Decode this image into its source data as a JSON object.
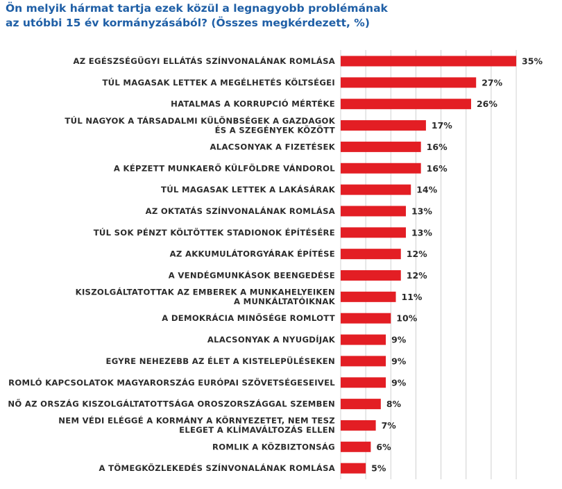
{
  "chart_data": {
    "type": "bar",
    "orientation": "horizontal",
    "title": "Ön melyik hármat tartja ezek közül a legnagyobb problémának\naz utóbbi 15 év kormányzásából? (Összes megkérdezett, %)",
    "categories": [
      "AZ EGÉSZSÉGÜGYI ELLÁTÁS SZÍNVONALÁNAK ROMLÁSA",
      "TÚL MAGASAK LETTEK A MEGÉLHETÉS KÖLTSÉGEI",
      "HATALMAS A KORRUPCIÓ MÉRTÉKE",
      "TÚL NAGYOK A TÁRSADALMI KÜLÖNBSÉGEK A GAZDAGOK\nÉS A SZEGÉNYEK KÖZÖTT",
      "ALACSONYAK A FIZETÉSEK",
      "A KÉPZETT MUNKAERŐ KÜLFÖLDRE VÁNDOROL",
      "TÚL MAGASAK LETTEK A LAKÁSÁRAK",
      "AZ OKTATÁS SZÍNVONALÁNAK ROMLÁSA",
      "TÚL SOK PÉNZT KÖLTÖTTEK STADIONOK ÉPÍTÉSÉRE",
      "AZ AKKUMULÁTORGYÁRAK ÉPÍTÉSE",
      "A VENDÉGMUNKÁSOK BEENGEDÉSE",
      "KISZOLGÁLTATOTTAK AZ EMBEREK A MUNKAHELYEIKEN\nA MUNKÁLTATÓIKNAK",
      "A DEMOKRÁCIA MINŐSÉGE ROMLOTT",
      "ALACSONYAK A NYUGDÍJAK",
      "EGYRE NEHEZEBB AZ ÉLET A KISTELEPÜLÉSEKEN",
      "ROMLÓ KAPCSOLATOK MAGYARORSZÁG EURÓPAI SZÖVETSÉGESEIVEL",
      "NŐ AZ ORSZÁG KISZOLGÁLTATOTTSÁGA OROSZORSZÁGGAL SZEMBEN",
      "NEM VÉDI ELÉGGÉ A KORMÁNY A KÖRNYEZETET, NEM TESZ\nELEGET A KLÍMAVÁLTOZÁS ELLEN",
      "ROMLIK A KÖZBIZTONSÁG",
      "A TÖMEGKÖZLEKEDÉS SZÍNVONALÁNAK ROMLÁSA"
    ],
    "values": [
      35,
      27,
      26,
      17,
      16,
      16,
      14,
      13,
      13,
      12,
      12,
      11,
      10,
      9,
      9,
      9,
      8,
      7,
      6,
      5
    ],
    "value_labels": [
      "35%",
      "27%",
      "26%",
      "17%",
      "16%",
      "16%",
      "14%",
      "13%",
      "13%",
      "12%",
      "12%",
      "11%",
      "10%",
      "9%",
      "9%",
      "9%",
      "8%",
      "7%",
      "6%",
      "5%"
    ],
    "xlim": [
      0,
      35
    ],
    "grid": true,
    "bar_color": "#e31e24",
    "grid_color": "#d0d0d0"
  }
}
